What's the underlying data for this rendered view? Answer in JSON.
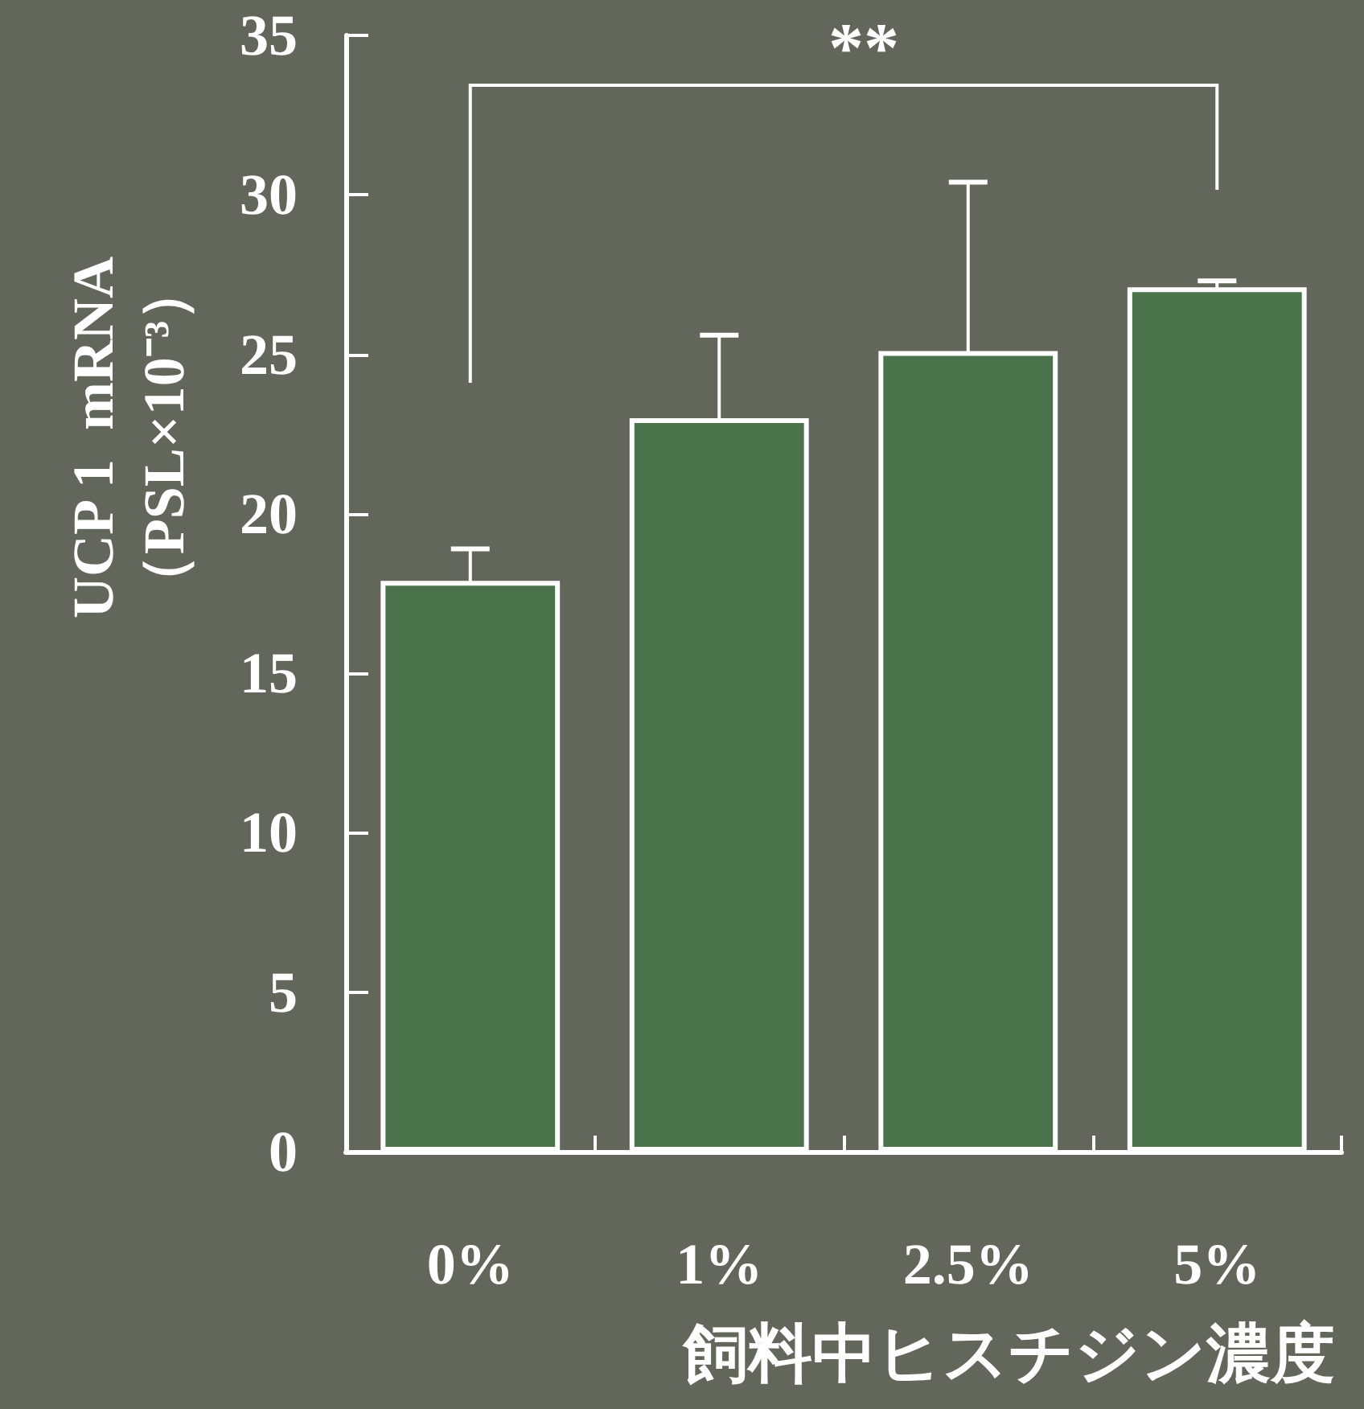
{
  "chart_data": {
    "type": "bar",
    "categories": [
      "0%",
      "1%",
      "2.5%",
      "5%"
    ],
    "values": [
      17.9,
      23.0,
      25.1,
      27.1
    ],
    "errors": [
      1.0,
      2.6,
      5.3,
      0.2
    ],
    "colors": [
      "#4a734b",
      "#4a734b",
      "#4a734b",
      "#4a734b"
    ],
    "xlabel": "飼料中ヒスチジン濃度",
    "ylabel": "UCP 1  mRNA\n（PSL×10⁻³）",
    "ylim": [
      0,
      35
    ],
    "yticks": [
      0,
      5,
      10,
      15,
      20,
      25,
      30,
      35
    ],
    "annotations": [
      "**"
    ],
    "grid": false
  }
}
